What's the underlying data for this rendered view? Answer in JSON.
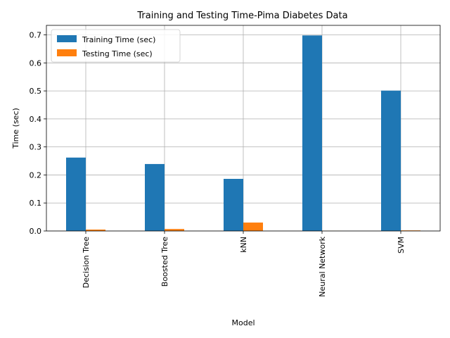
{
  "chart_data": {
    "type": "bar",
    "title": "Training and Testing Time-Pima Diabetes Data",
    "xlabel": "Model",
    "ylabel": "Time (sec)",
    "categories": [
      "Decision Tree",
      "Boosted Tree",
      "kNN",
      "Neural Network",
      "SVM"
    ],
    "series": [
      {
        "name": "Training Time (sec)",
        "color": "#1f77b4",
        "values": [
          0.262,
          0.239,
          0.186,
          0.698,
          0.501
        ]
      },
      {
        "name": "Testing Time (sec)",
        "color": "#ff7f0e",
        "values": [
          0.005,
          0.007,
          0.03,
          0.0003,
          0.002
        ]
      }
    ],
    "ylim": [
      0,
      0.734
    ],
    "yticks": [
      0.0,
      0.1,
      0.2,
      0.3,
      0.4,
      0.5,
      0.6,
      0.7
    ],
    "ytick_labels": [
      "0.0",
      "0.1",
      "0.2",
      "0.3",
      "0.4",
      "0.5",
      "0.6",
      "0.7"
    ],
    "grid": true,
    "legend_position": "top-left"
  }
}
